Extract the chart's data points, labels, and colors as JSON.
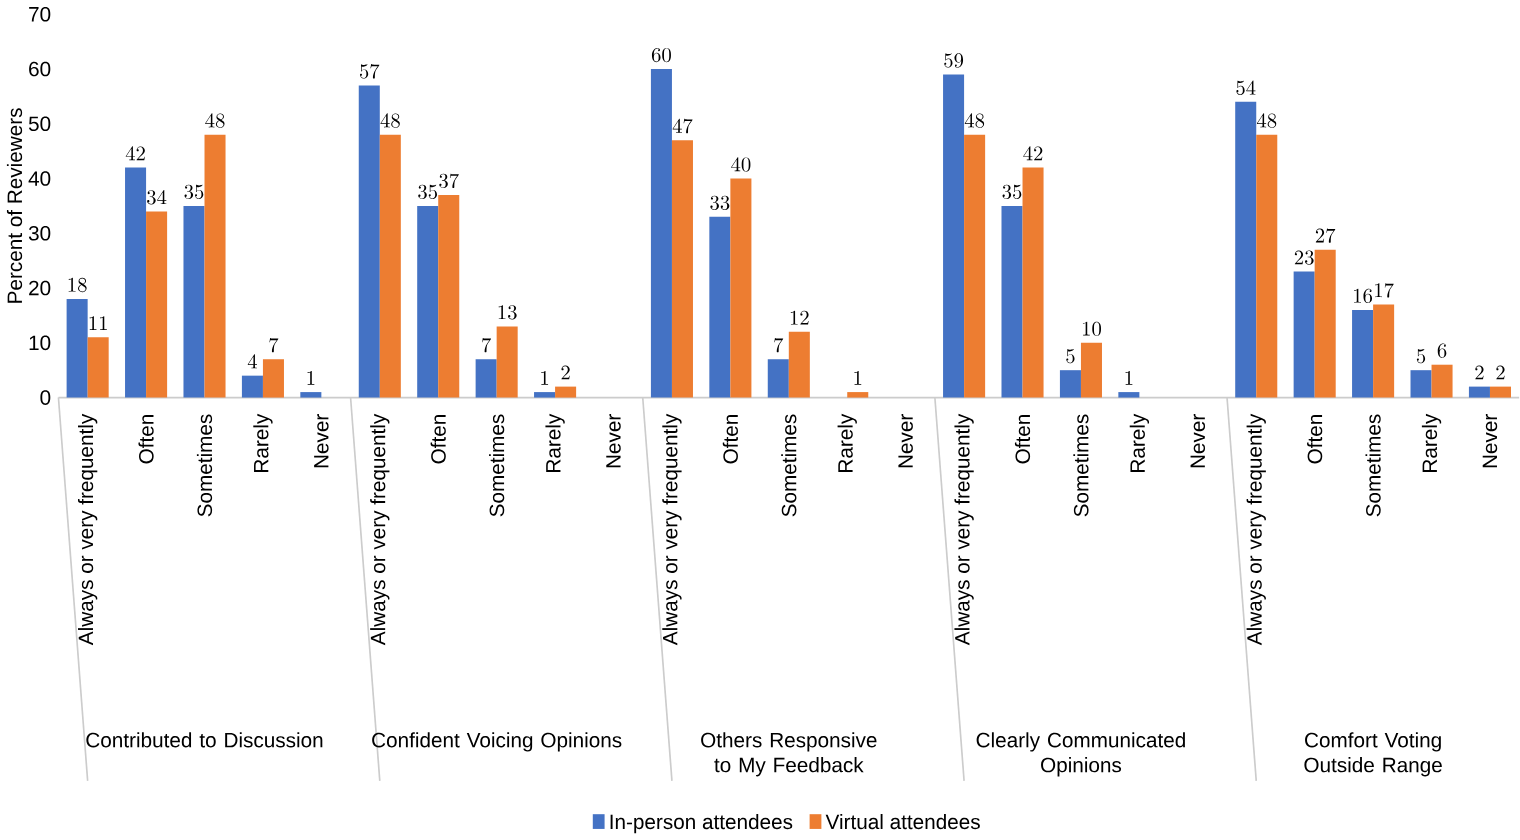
{
  "chart_data": {
    "type": "bar",
    "ylabel": "Percent of Reviewers",
    "categories": [
      "Always or very frequently",
      "Often",
      "Sometimes",
      "Rarely",
      "Never",
      "Always or very frequently",
      "Often",
      "Sometimes",
      "Rarely",
      "Never",
      "Always or very frequently",
      "Often",
      "Sometimes",
      "Rarely",
      "Never",
      "Always or very frequently",
      "Often",
      "Sometimes",
      "Rarely",
      "Never",
      "Always or very frequently",
      "Often",
      "Sometimes",
      "Rarely",
      "Never"
    ],
    "series": [
      {
        "name": "In-person attendees",
        "color": "#4472c4",
        "values": [
          18,
          42,
          35,
          4,
          1,
          57,
          35,
          7,
          1,
          null,
          60,
          33,
          7,
          null,
          null,
          59,
          35,
          5,
          1,
          null,
          54,
          23,
          16,
          5,
          2
        ]
      },
      {
        "name": "Virtual attendees",
        "color": "#ed7d31",
        "values": [
          11,
          34,
          48,
          7,
          null,
          48,
          37,
          13,
          2,
          null,
          47,
          40,
          12,
          1,
          null,
          48,
          42,
          10,
          null,
          null,
          48,
          27,
          17,
          6,
          2
        ]
      }
    ],
    "annotations": [
      "Contributed to Discussion",
      "Confident Voicing Opinions",
      "Others Responsive to My Feedback",
      "Clearly Communicated Opinions",
      "Comfort Voting Outside Range"
    ],
    "ylim": [
      0,
      70
    ],
    "yticks": [
      0,
      10,
      20,
      30,
      40,
      50,
      60,
      70
    ],
    "data_labels": true,
    "legend": "bottom",
    "grid": false
  }
}
